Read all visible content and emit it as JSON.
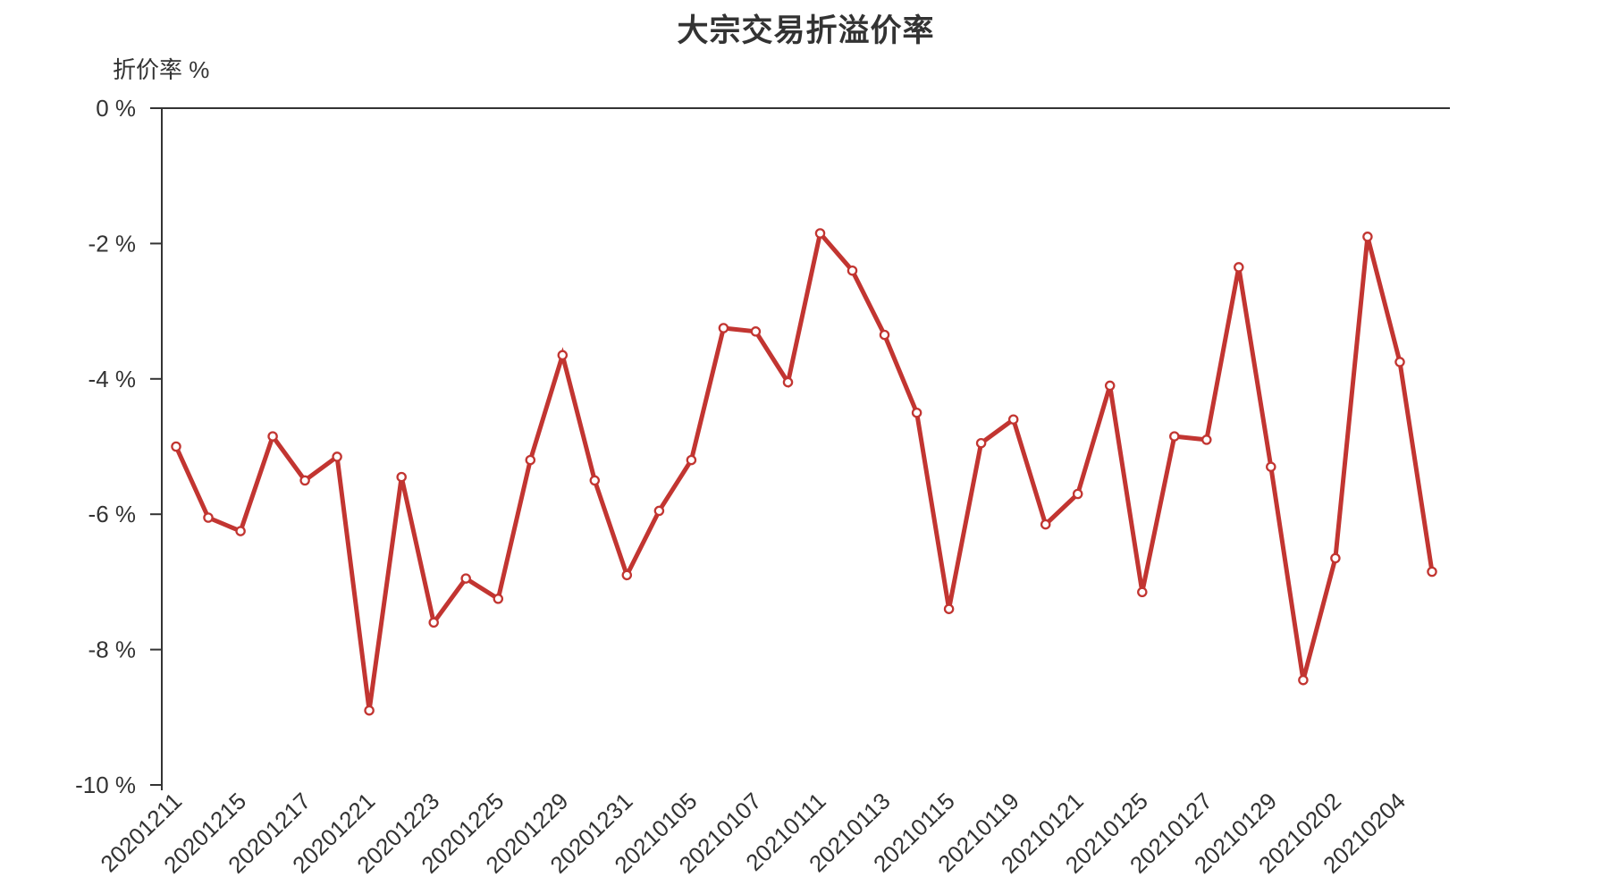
{
  "title": "大宗交易折溢价率",
  "y_axis_title": "折价率 %",
  "chart_data": {
    "type": "line",
    "title": "大宗交易折溢价率",
    "ylabel": "折价率 %",
    "xlabel": "",
    "ylim": [
      0,
      -10
    ],
    "yticks": [
      0,
      -2,
      -4,
      -6,
      -8,
      -10
    ],
    "ytick_labels": [
      "0 %",
      "-2 %",
      "-4 %",
      "-6 %",
      "-8 %",
      "-10 %"
    ],
    "grid": false,
    "legend": false,
    "x_tick_labels": [
      "20201211",
      "20201215",
      "20201217",
      "20201221",
      "20201223",
      "20201225",
      "20201229",
      "20201231",
      "20210105",
      "20210107",
      "20210111",
      "20210113",
      "20210115",
      "20210119",
      "20210121",
      "20210125",
      "20210127",
      "20210129",
      "20210202",
      "20210204"
    ],
    "label_every": 2,
    "series": [
      {
        "name": "折价率",
        "x": [
          "20201211",
          "20201214",
          "20201215",
          "20201216",
          "20201217",
          "20201218",
          "20201221",
          "20201222",
          "20201223",
          "20201224",
          "20201225",
          "20201228",
          "20201229",
          "20201230",
          "20201231",
          "20210104",
          "20210105",
          "20210106",
          "20210107",
          "20210108",
          "20210111",
          "20210112",
          "20210113",
          "20210114",
          "20210115",
          "20210118",
          "20210119",
          "20210120",
          "20210121",
          "20210122",
          "20210125",
          "20210126",
          "20210127",
          "20210128",
          "20210129",
          "20210201",
          "20210202",
          "20210203",
          "20210204",
          "20210205"
        ],
        "values": [
          -5.0,
          -6.05,
          -6.25,
          -4.85,
          -5.5,
          -5.15,
          -8.9,
          -5.45,
          -7.6,
          -6.95,
          -7.25,
          -5.2,
          -3.65,
          -5.5,
          -6.9,
          -5.95,
          -5.2,
          -3.25,
          -3.3,
          -4.05,
          -1.85,
          -2.4,
          -3.35,
          -4.5,
          -7.4,
          -4.95,
          -4.6,
          -6.15,
          -5.7,
          -4.1,
          -7.15,
          -4.85,
          -4.9,
          -2.35,
          -5.3,
          -8.45,
          -6.65,
          -1.9,
          -3.75,
          -6.85
        ]
      }
    ],
    "line_color": "#c23531",
    "marker_fill": "#ffffff",
    "axis_color": "#333333",
    "text_color": "#333333",
    "background_color": "#ffffff"
  }
}
